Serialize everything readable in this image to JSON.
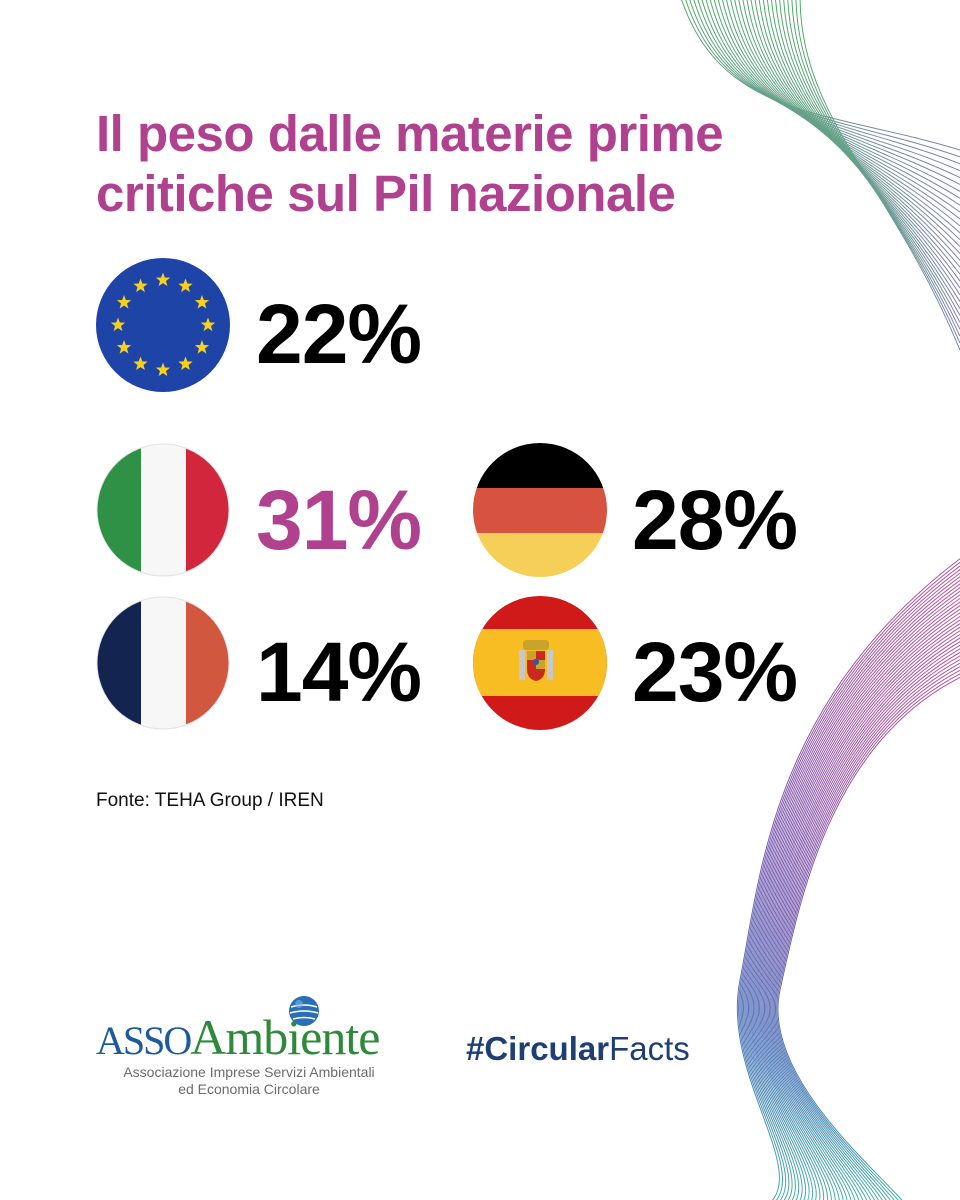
{
  "title": {
    "line1": "Il peso dalle materie prime",
    "line2": "critiche sul Pil nazionale"
  },
  "countries": [
    {
      "id": "eu",
      "value": "22%",
      "icon": "eu-flag-icon"
    },
    {
      "id": "italy",
      "value": "31%",
      "icon": "italy-flag-icon"
    },
    {
      "id": "germany",
      "value": "28%",
      "icon": "germany-flag-icon"
    },
    {
      "id": "france",
      "value": "14%",
      "icon": "france-flag-icon"
    },
    {
      "id": "spain",
      "value": "23%",
      "icon": "spain-flag-icon"
    }
  ],
  "source": "Fonte: TEHA Group / IREN",
  "logo": {
    "prefix": "ASSO",
    "name": "Ambiente",
    "tagline1": "Associazione Imprese Servizi Ambientali",
    "tagline2": "ed Economia Circolare"
  },
  "hashtag": {
    "bold": "#Circular",
    "regular": "Facts"
  },
  "colors": {
    "accent": "#b0418f",
    "text": "#000000",
    "hashtag": "#1e3f73",
    "logo_blue": "#1c5a9c",
    "logo_green": "#2e8a3a"
  }
}
